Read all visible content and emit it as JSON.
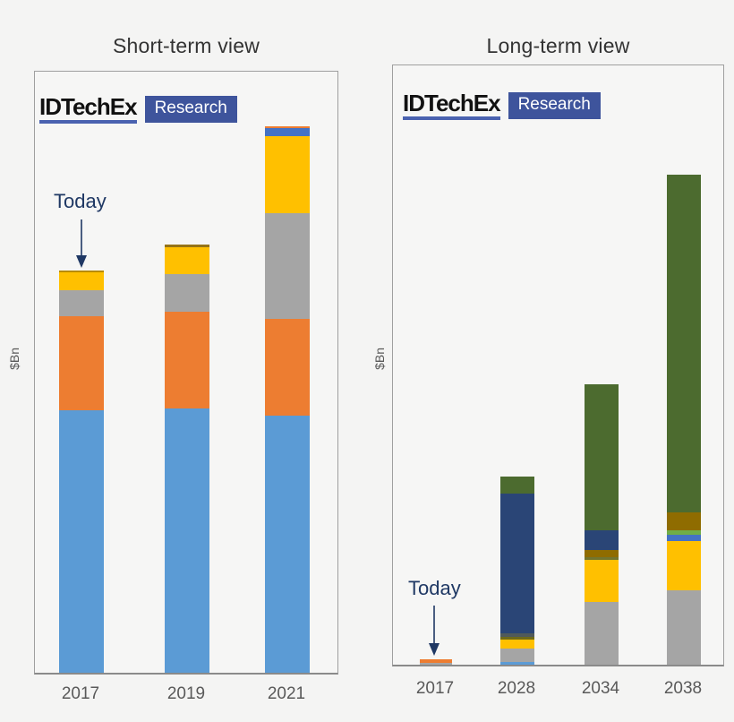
{
  "logo": {
    "name": "IDTechEx",
    "badge": "Research"
  },
  "chart_data": [
    {
      "type": "bar",
      "stacked": true,
      "title": "Short-term view",
      "xlabel": "",
      "ylabel": "$Bn",
      "annotation": "Today",
      "annotation_target": "2017",
      "axis_note": "y-axis has no numeric tick labels; segment values are relative heights (px) read from the image",
      "legend": "none",
      "grid": false,
      "categories": [
        "2017",
        "2019",
        "2021"
      ],
      "bars": [
        {
          "category": "2017",
          "segments": [
            {
              "name": "light-blue",
              "color": "#5b9bd5",
              "value": 293
            },
            {
              "name": "orange",
              "color": "#ed7d31",
              "value": 105
            },
            {
              "name": "gray",
              "color": "#a5a5a5",
              "value": 29
            },
            {
              "name": "yellow",
              "color": "#ffc000",
              "value": 20
            },
            {
              "name": "gold-sliver",
              "color": "#b78b00",
              "value": 2
            }
          ]
        },
        {
          "category": "2019",
          "segments": [
            {
              "name": "light-blue",
              "color": "#5b9bd5",
              "value": 295
            },
            {
              "name": "orange",
              "color": "#ed7d31",
              "value": 108
            },
            {
              "name": "gray",
              "color": "#a5a5a5",
              "value": 42
            },
            {
              "name": "yellow",
              "color": "#ffc000",
              "value": 30
            },
            {
              "name": "brown-sliver",
              "color": "#957317",
              "value": 3
            }
          ]
        },
        {
          "category": "2021",
          "segments": [
            {
              "name": "light-blue",
              "color": "#5b9bd5",
              "value": 287
            },
            {
              "name": "orange",
              "color": "#ed7d31",
              "value": 108
            },
            {
              "name": "gray",
              "color": "#a5a5a5",
              "value": 118
            },
            {
              "name": "yellow",
              "color": "#ffc000",
              "value": 86
            },
            {
              "name": "medium-blue",
              "color": "#4472c4",
              "value": 9
            },
            {
              "name": "orange-sliver",
              "color": "#ed7d31",
              "value": 2
            }
          ]
        }
      ]
    },
    {
      "type": "bar",
      "stacked": true,
      "title": "Long-term view",
      "xlabel": "",
      "ylabel": "$Bn",
      "annotation": "Today",
      "annotation_target": "2017",
      "axis_note": "y-axis has no numeric tick labels; segment values are relative heights (px) read from the image",
      "legend": "none",
      "grid": false,
      "categories": [
        "2017",
        "2028",
        "2034",
        "2038"
      ],
      "bars": [
        {
          "category": "2017",
          "segments": [
            {
              "name": "gray",
              "color": "#a5a5a5",
              "value": 2
            },
            {
              "name": "orange",
              "color": "#ed7d31",
              "value": 4
            }
          ]
        },
        {
          "category": "2028",
          "segments": [
            {
              "name": "light-blue",
              "color": "#5b9bd5",
              "value": 3
            },
            {
              "name": "gray",
              "color": "#a5a5a5",
              "value": 15
            },
            {
              "name": "yellow",
              "color": "#ffc000",
              "value": 10
            },
            {
              "name": "olive",
              "color": "#6e6a1a",
              "value": 3
            },
            {
              "name": "slate",
              "color": "#505a5a",
              "value": 4
            },
            {
              "name": "navy",
              "color": "#2a4576",
              "value": 156
            },
            {
              "name": "green",
              "color": "#4c6b2f",
              "value": 19
            }
          ]
        },
        {
          "category": "2034",
          "segments": [
            {
              "name": "gray",
              "color": "#a5a5a5",
              "value": 70
            },
            {
              "name": "yellow",
              "color": "#ffc000",
              "value": 47
            },
            {
              "name": "olive",
              "color": "#72752e",
              "value": 3
            },
            {
              "name": "brown",
              "color": "#8f6c00",
              "value": 8
            },
            {
              "name": "navy",
              "color": "#2a4576",
              "value": 22
            },
            {
              "name": "green",
              "color": "#4c6b2f",
              "value": 163
            }
          ]
        },
        {
          "category": "2038",
          "segments": [
            {
              "name": "gray",
              "color": "#a5a5a5",
              "value": 83
            },
            {
              "name": "yellow",
              "color": "#ffc000",
              "value": 55
            },
            {
              "name": "medium-blue",
              "color": "#4472c4",
              "value": 7
            },
            {
              "name": "light-green",
              "color": "#70ad47",
              "value": 5
            },
            {
              "name": "brown",
              "color": "#8f6c00",
              "value": 20
            },
            {
              "name": "green",
              "color": "#4c6b2f",
              "value": 377
            }
          ]
        }
      ]
    }
  ],
  "colors": {
    "background": "#f4f4f3",
    "panel_border": "#9f9f9f",
    "annotation_navy": "#1f3864",
    "logo_underline": "#4a62b0",
    "logo_badge_bg": "#3e549c",
    "tick_text": "#595959"
  }
}
